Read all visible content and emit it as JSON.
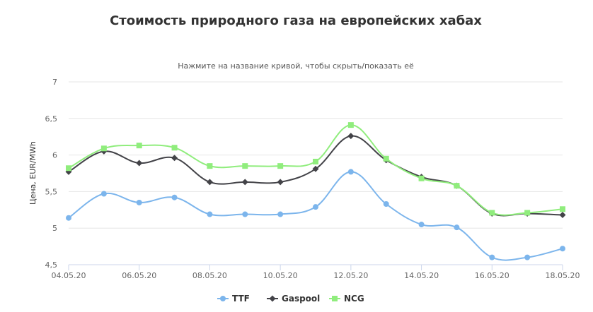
{
  "chart_data": {
    "type": "line",
    "title": "Стоимость природного газа на европейских хабах",
    "subtitle": "Нажмите на название кривой, чтобы скрыть/показать её",
    "ylabel": "Цена, EUR/MWh",
    "xlabel": "",
    "x": [
      "04.05.20",
      "05.05.20",
      "06.05.20",
      "07.05.20",
      "08.05.20",
      "09.05.20",
      "10.05.20",
      "11.05.20",
      "12.05.20",
      "13.05.20",
      "14.05.20",
      "15.05.20",
      "16.05.20",
      "17.05.20",
      "18.05.20"
    ],
    "x_tick_labels": [
      "04.05.20",
      "06.05.20",
      "08.05.20",
      "10.05.20",
      "12.05.20",
      "14.05.20",
      "16.05.20",
      "18.05.20"
    ],
    "ylim": [
      4.5,
      7
    ],
    "y_ticks": [
      4.5,
      5,
      5.5,
      6,
      6.5,
      7
    ],
    "y_tick_labels": [
      "4,5",
      "5",
      "5,5",
      "6",
      "6,5",
      "7"
    ],
    "grid": true,
    "legend_position": "bottom-center",
    "series": [
      {
        "name": "TTF",
        "color": "#7cb5ec",
        "marker": "circle",
        "values": [
          5.14,
          5.47,
          5.35,
          5.42,
          5.19,
          5.19,
          5.19,
          5.29,
          5.77,
          5.33,
          5.05,
          5.01,
          4.6,
          4.6,
          4.72
        ]
      },
      {
        "name": "Gaspool",
        "color": "#434348",
        "marker": "diamond",
        "values": [
          5.77,
          6.05,
          5.89,
          5.96,
          5.63,
          5.63,
          5.63,
          5.81,
          6.26,
          5.93,
          5.7,
          5.58,
          5.2,
          5.2,
          5.18
        ]
      },
      {
        "name": "NCG",
        "color": "#90ed7d",
        "marker": "square",
        "values": [
          5.82,
          6.09,
          6.13,
          6.1,
          5.85,
          5.85,
          5.85,
          5.91,
          6.41,
          5.95,
          5.68,
          5.58,
          5.21,
          5.21,
          5.26
        ]
      }
    ]
  }
}
